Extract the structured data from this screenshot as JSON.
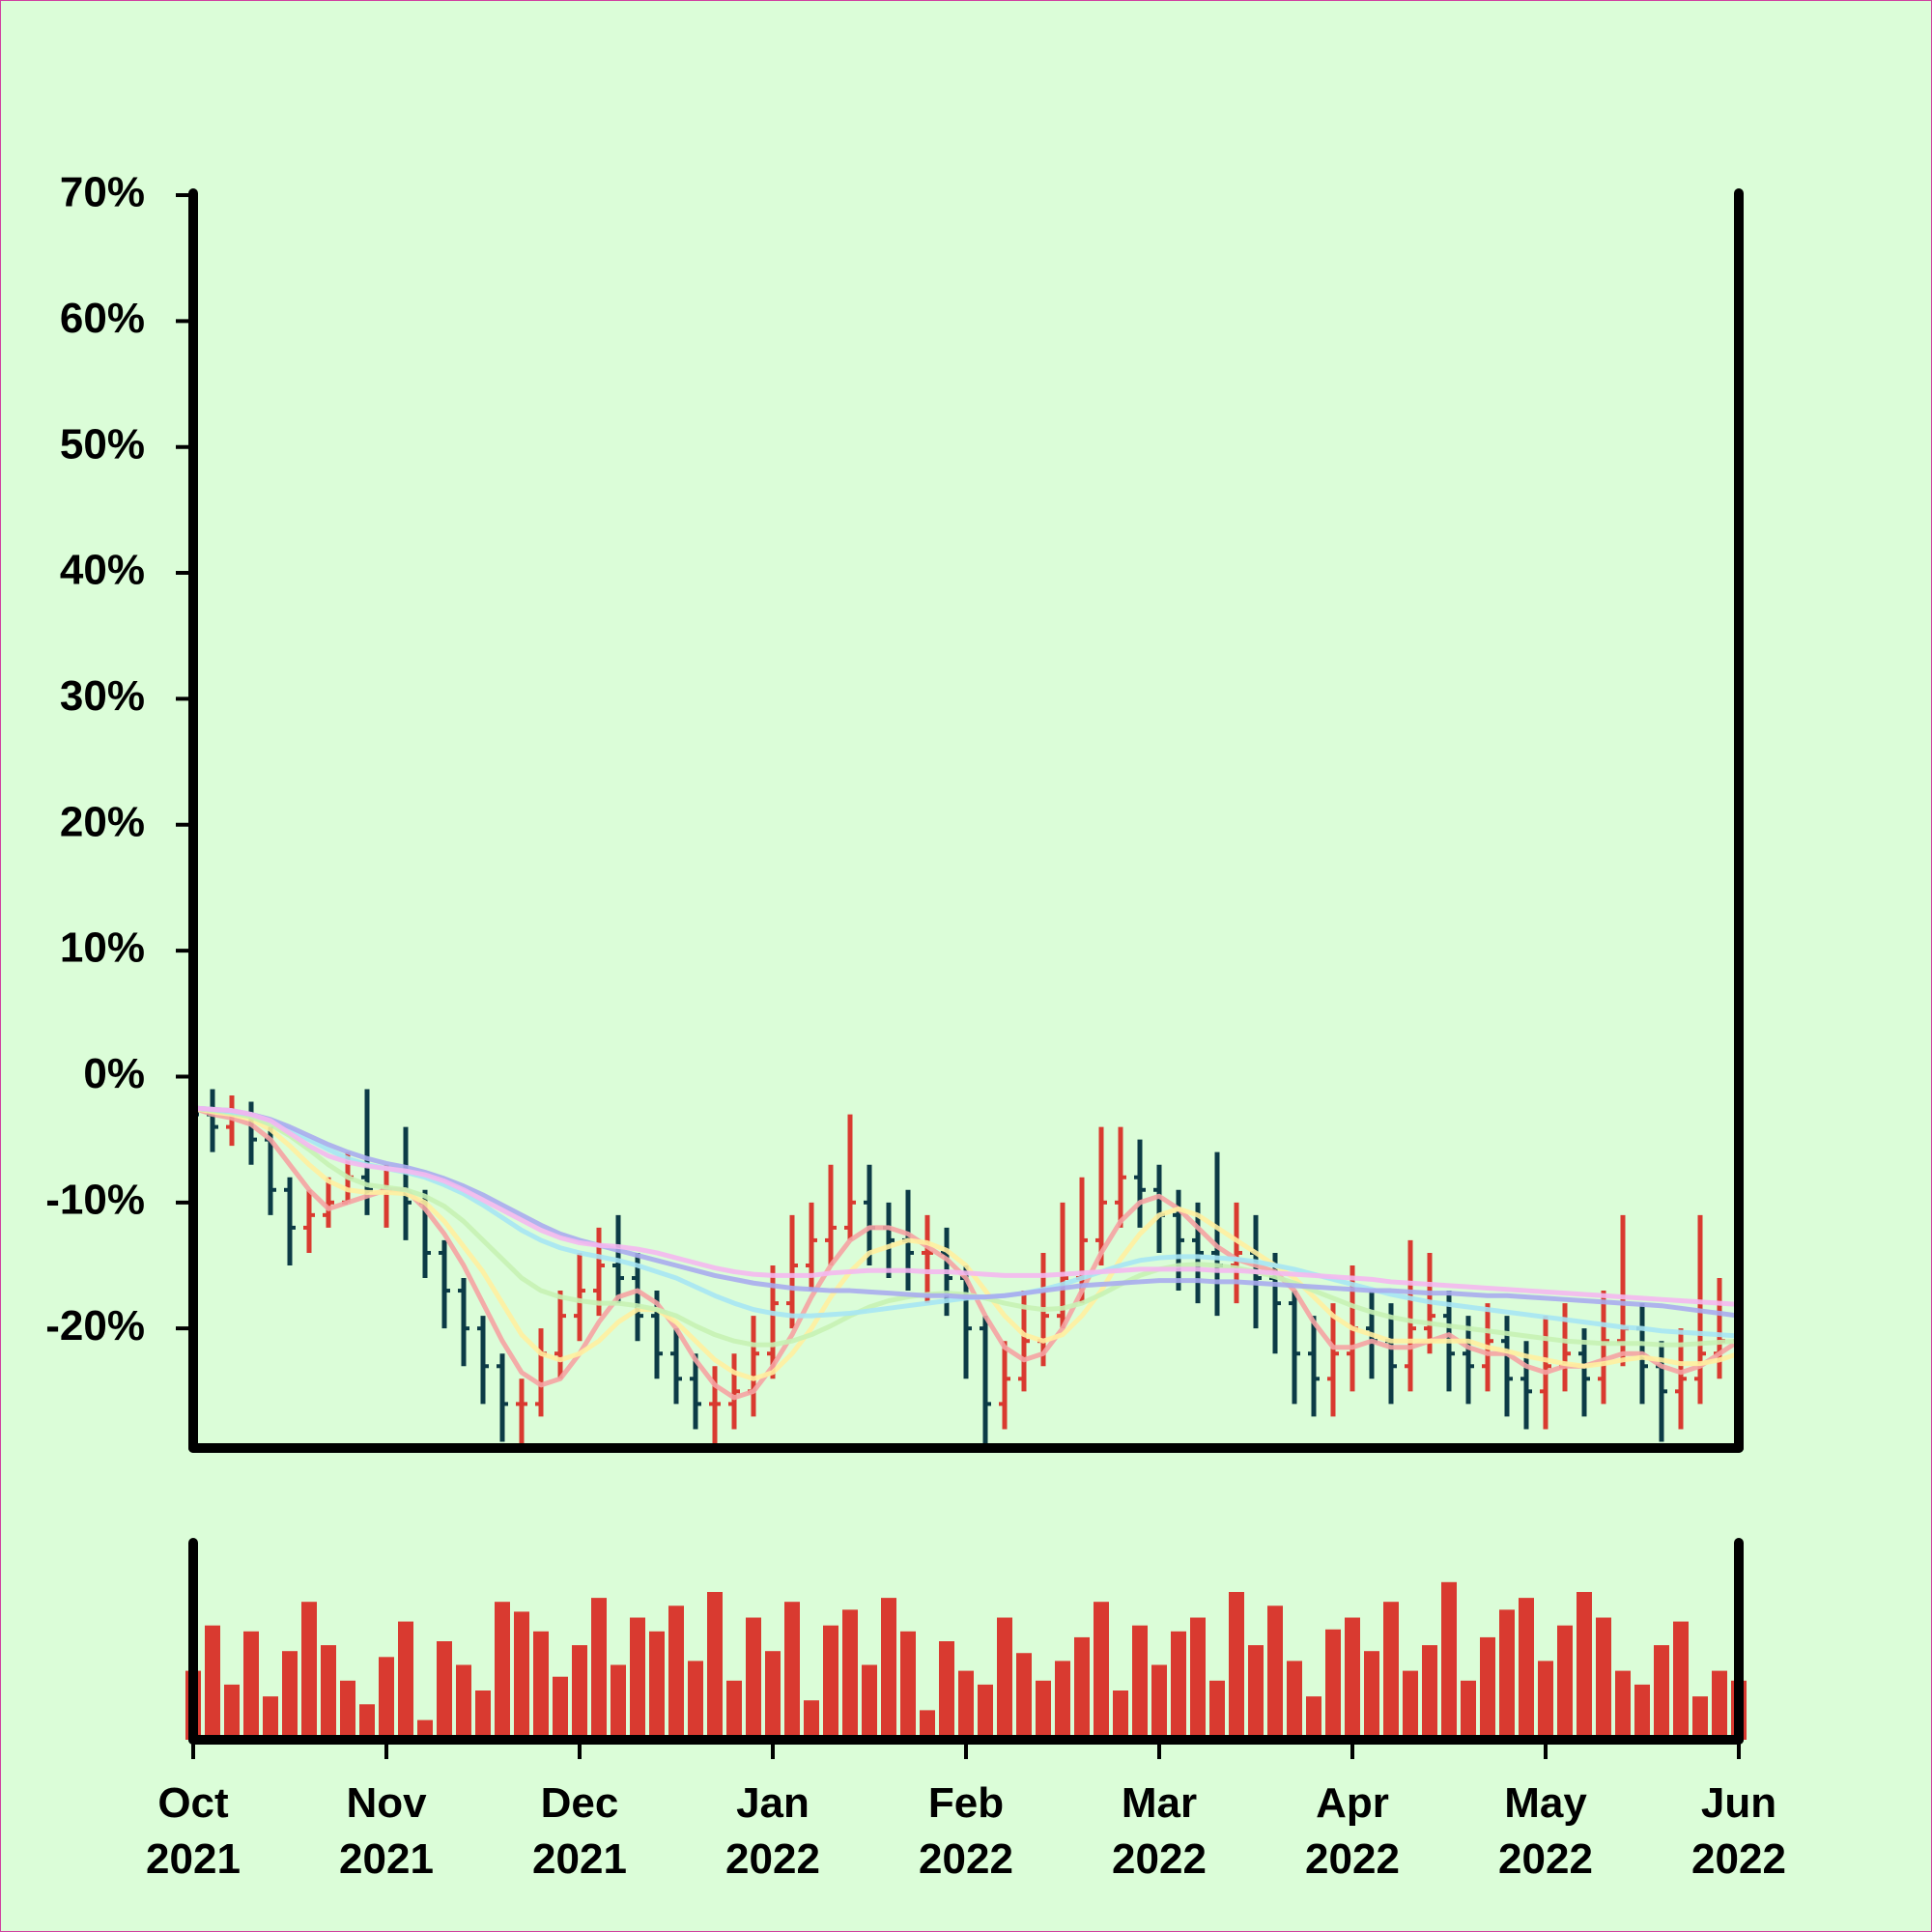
{
  "chart_data": {
    "type": "ohlc",
    "x": [
      0,
      0.1,
      0.2,
      0.3,
      0.4,
      0.5,
      0.6,
      0.7,
      0.8,
      0.9,
      1,
      1.1,
      1.2,
      1.3,
      1.4,
      1.5,
      1.6,
      1.7,
      1.8,
      1.9,
      2,
      2.1,
      2.2,
      2.3,
      2.4,
      2.5,
      2.6,
      2.7,
      2.8,
      2.9,
      3,
      3.1,
      3.2,
      3.3,
      3.4,
      3.5,
      3.6,
      3.7,
      3.8,
      3.9,
      4,
      4.1,
      4.2,
      4.3,
      4.4,
      4.5,
      4.6,
      4.7,
      4.8,
      4.9,
      5,
      5.1,
      5.2,
      5.3,
      5.4,
      5.5,
      5.6,
      5.7,
      5.8,
      5.9,
      6,
      6.1,
      6.2,
      6.3,
      6.4,
      6.5,
      6.6,
      6.7,
      6.8,
      6.9,
      7,
      7.1,
      7.2,
      7.3,
      7.4,
      7.5,
      7.6,
      7.7,
      7.8,
      7.9,
      8
    ],
    "open": [
      -2,
      -3,
      -4,
      -3,
      -5,
      -9,
      -12,
      -11,
      -10,
      -8,
      -9,
      -9,
      -10,
      -14,
      -17,
      -20,
      -23,
      -26,
      -26,
      -22,
      -19,
      -17,
      -15,
      -16,
      -19,
      -22,
      -24,
      -26,
      -26,
      -25,
      -22,
      -18,
      -15,
      -13,
      -12,
      -10,
      -12,
      -13,
      -14,
      -14,
      -16,
      -20,
      -26,
      -24,
      -21,
      -19,
      -16,
      -13,
      -10,
      -8,
      -9,
      -11,
      -13,
      -14,
      -15,
      -14,
      -16,
      -18,
      -22,
      -24,
      -22,
      -20,
      -21,
      -23,
      -20,
      -19,
      -22,
      -23,
      -21,
      -24,
      -25,
      -23,
      -22,
      -24,
      -21,
      -20,
      -23,
      -25,
      -24,
      -22,
      -21
    ],
    "high": [
      -0.5,
      -1,
      -1.5,
      -2,
      -4,
      -8,
      -9,
      -8,
      -6,
      -1,
      -7,
      -4,
      -9,
      -13,
      -16,
      -19,
      -22,
      -24,
      -20,
      -17,
      -14,
      -12,
      -11,
      -14,
      -17,
      -20,
      -22,
      -23,
      -22,
      -19,
      -15,
      -11,
      -10,
      -7,
      -3,
      -7,
      -10,
      -9,
      -11,
      -12,
      -15,
      -19,
      -21,
      -17,
      -14,
      -10,
      -8,
      -4,
      -4,
      -5,
      -7,
      -9,
      -10,
      -6,
      -10,
      -11,
      -14,
      -17,
      -19,
      -18,
      -15,
      -17,
      -18,
      -13,
      -14,
      -17,
      -19,
      -18,
      -19,
      -21,
      -19,
      -18,
      -20,
      -17,
      -11,
      -18,
      -21,
      -20,
      -11,
      -16,
      -16
    ],
    "low": [
      -5,
      -6,
      -5.5,
      -7,
      -11,
      -15,
      -14,
      -12,
      -10,
      -11,
      -12,
      -13,
      -16,
      -20,
      -23,
      -26,
      -29,
      -29.5,
      -27,
      -24,
      -21,
      -19,
      -18,
      -21,
      -24,
      -26,
      -28,
      -29.5,
      -28,
      -27,
      -24,
      -20,
      -17,
      -15,
      -13,
      -15,
      -16,
      -17,
      -18,
      -19,
      -24,
      -29.5,
      -28,
      -25,
      -23,
      -20,
      -18,
      -15,
      -12,
      -12,
      -14,
      -17,
      -18,
      -19,
      -18,
      -20,
      -22,
      -26,
      -27,
      -27,
      -25,
      -24,
      -26,
      -25,
      -22,
      -25,
      -26,
      -25,
      -27,
      -28,
      -28,
      -25,
      -27,
      -26,
      -23,
      -26,
      -29,
      -28,
      -26,
      -24,
      -22
    ],
    "close": [
      -3,
      -4,
      -3,
      -5,
      -9,
      -12,
      -11,
      -10,
      -8,
      -9,
      -9,
      -10,
      -14,
      -17,
      -20,
      -23,
      -26,
      -26,
      -22,
      -19,
      -17,
      -15,
      -16,
      -19,
      -22,
      -24,
      -26,
      -26,
      -25,
      -22,
      -18,
      -15,
      -13,
      -12,
      -10,
      -12,
      -13,
      -14,
      -14,
      -16,
      -20,
      -26,
      -24,
      -21,
      -19,
      -16,
      -13,
      -10,
      -8,
      -9,
      -11,
      -13,
      -14,
      -15,
      -14,
      -16,
      -18,
      -22,
      -24,
      -22,
      -20,
      -21,
      -23,
      -20,
      -19,
      -22,
      -23,
      -21,
      -24,
      -25,
      -23,
      -22,
      -24,
      -21,
      -20,
      -23,
      -25,
      -24,
      -22,
      -21,
      -20
    ],
    "up_color": "#d93a30",
    "down_color": "#0c3b46",
    "volume": [
      35,
      58,
      28,
      55,
      22,
      45,
      70,
      48,
      30,
      18,
      42,
      60,
      10,
      50,
      38,
      25,
      70,
      65,
      55,
      32,
      48,
      72,
      38,
      62,
      55,
      68,
      40,
      75,
      30,
      62,
      45,
      70,
      20,
      58,
      66,
      38,
      72,
      55,
      15,
      50,
      35,
      28,
      62,
      44,
      30,
      40,
      52,
      70,
      25,
      58,
      38,
      55,
      62,
      30,
      75,
      48,
      68,
      40,
      22,
      56,
      62,
      45,
      70,
      35,
      48,
      80,
      30,
      52,
      66,
      72,
      40,
      58,
      75,
      62,
      35,
      28,
      48,
      60,
      22,
      35,
      30
    ],
    "volume_color": "#d93a30",
    "vlim": [
      0,
      100
    ],
    "moving_averages": [
      {
        "color": "#f5a3a3",
        "values": [
          -2.5,
          -3,
          -3.3,
          -3.8,
          -5,
          -7,
          -9,
          -10.5,
          -10,
          -9.5,
          -9,
          -9,
          -10.5,
          -12.5,
          -15,
          -18,
          -21,
          -23.5,
          -24.5,
          -24,
          -22,
          -19.5,
          -17.5,
          -17,
          -18,
          -20,
          -22.5,
          -24.5,
          -25.5,
          -25,
          -23,
          -20.5,
          -17.5,
          -15,
          -13,
          -12,
          -12,
          -12.5,
          -13.5,
          -14.5,
          -16,
          -19,
          -21.5,
          -22.5,
          -22,
          -20,
          -17,
          -14,
          -11.5,
          -10,
          -9.5,
          -10.5,
          -12,
          -13.5,
          -14.5,
          -15,
          -15.5,
          -17,
          -19.5,
          -21.5,
          -21.5,
          -21,
          -21.5,
          -21.5,
          -21,
          -20.5,
          -21.5,
          -22,
          -22,
          -23,
          -23.5,
          -23,
          -23,
          -22.5,
          -22,
          -22,
          -23,
          -23.5,
          -23,
          -22,
          -21
        ]
      },
      {
        "color": "#fff0a0",
        "values": [
          -2.5,
          -2.8,
          -3,
          -3.4,
          -4.2,
          -5.5,
          -7,
          -8.3,
          -9,
          -9.2,
          -9.2,
          -9.3,
          -10,
          -11.5,
          -13.5,
          -15.5,
          -18,
          -20.5,
          -22,
          -22.5,
          -22,
          -21,
          -19.5,
          -18.5,
          -18.5,
          -19.5,
          -21,
          -22.5,
          -23.5,
          -24,
          -23.5,
          -22,
          -20,
          -17.5,
          -15.5,
          -14,
          -13.5,
          -13,
          -13.2,
          -13.8,
          -15,
          -17,
          -19,
          -20.5,
          -21,
          -20.5,
          -19,
          -17,
          -14.5,
          -12.5,
          -11,
          -10.5,
          -11,
          -12,
          -13,
          -14,
          -15,
          -16,
          -17.5,
          -19,
          -20,
          -20.5,
          -21,
          -21,
          -21,
          -21,
          -21,
          -21.5,
          -21.8,
          -22.2,
          -22.5,
          -22.8,
          -23,
          -22.8,
          -22.5,
          -22.3,
          -22.5,
          -22.8,
          -22.8,
          -22.5,
          -22
        ]
      },
      {
        "color": "#c6f2b4",
        "values": [
          -2.5,
          -2.7,
          -2.9,
          -3.2,
          -3.8,
          -4.7,
          -5.8,
          -7,
          -8,
          -8.6,
          -8.8,
          -9,
          -9.5,
          -10.3,
          -11.5,
          -13,
          -14.5,
          -16,
          -17,
          -17.5,
          -17.8,
          -18,
          -18,
          -18.2,
          -18.5,
          -19,
          -19.8,
          -20.5,
          -21,
          -21.3,
          -21.3,
          -21,
          -20.5,
          -19.8,
          -19,
          -18.3,
          -17.8,
          -17.5,
          -17.3,
          -17.2,
          -17.3,
          -17.6,
          -18,
          -18.3,
          -18.5,
          -18.4,
          -18,
          -17.3,
          -16.5,
          -15.8,
          -15.3,
          -15,
          -14.9,
          -15,
          -15.2,
          -15.5,
          -15.9,
          -16.4,
          -17,
          -17.6,
          -18.2,
          -18.7,
          -19.1,
          -19.4,
          -19.6,
          -19.8,
          -20,
          -20.2,
          -20.4,
          -20.6,
          -20.8,
          -21,
          -21.1,
          -21.2,
          -21.2,
          -21.2,
          -21.3,
          -21.3,
          -21.2,
          -21.1,
          -21
        ]
      },
      {
        "color": "#a6e6f4",
        "values": [
          -2.5,
          -2.6,
          -2.8,
          -3,
          -3.5,
          -4.2,
          -5,
          -5.8,
          -6.5,
          -7,
          -7.3,
          -7.6,
          -8,
          -8.6,
          -9.3,
          -10.2,
          -11.2,
          -12.2,
          -13,
          -13.6,
          -14,
          -14.3,
          -14.6,
          -15,
          -15.5,
          -16,
          -16.7,
          -17.4,
          -18,
          -18.5,
          -18.8,
          -19,
          -19,
          -18.9,
          -18.8,
          -18.6,
          -18.4,
          -18.2,
          -18,
          -17.8,
          -17.6,
          -17.5,
          -17.4,
          -17.2,
          -16.9,
          -16.5,
          -16,
          -15.5,
          -15,
          -14.6,
          -14.4,
          -14.3,
          -14.3,
          -14.4,
          -14.5,
          -14.7,
          -15,
          -15.3,
          -15.7,
          -16.1,
          -16.5,
          -16.9,
          -17.3,
          -17.6,
          -17.9,
          -18.1,
          -18.3,
          -18.5,
          -18.7,
          -18.9,
          -19.1,
          -19.3,
          -19.5,
          -19.7,
          -19.9,
          -20,
          -20.2,
          -20.3,
          -20.4,
          -20.5,
          -20.6
        ]
      },
      {
        "color": "#a8acee",
        "values": [
          -2.5,
          -2.6,
          -2.7,
          -3,
          -3.4,
          -4,
          -4.7,
          -5.4,
          -6,
          -6.5,
          -6.9,
          -7.2,
          -7.6,
          -8.1,
          -8.7,
          -9.4,
          -10.2,
          -11,
          -11.8,
          -12.5,
          -13,
          -13.4,
          -13.8,
          -14.2,
          -14.6,
          -15,
          -15.4,
          -15.8,
          -16.1,
          -16.4,
          -16.6,
          -16.8,
          -16.9,
          -17,
          -17,
          -17.1,
          -17.2,
          -17.3,
          -17.4,
          -17.4,
          -17.5,
          -17.5,
          -17.4,
          -17.2,
          -17,
          -16.8,
          -16.6,
          -16.5,
          -16.4,
          -16.3,
          -16.2,
          -16.2,
          -16.2,
          -16.3,
          -16.3,
          -16.4,
          -16.5,
          -16.6,
          -16.7,
          -16.8,
          -16.9,
          -17,
          -17,
          -17.1,
          -17.2,
          -17.2,
          -17.3,
          -17.4,
          -17.4,
          -17.5,
          -17.6,
          -17.7,
          -17.8,
          -17.9,
          -18,
          -18.1,
          -18.2,
          -18.4,
          -18.6,
          -18.8,
          -19
        ]
      },
      {
        "color": "#f4b8f0",
        "values": [
          -2.5,
          -2.6,
          -2.7,
          -3,
          -3.5,
          -4.5,
          -5.5,
          -6.3,
          -6.8,
          -7.1,
          -7.3,
          -7.5,
          -7.8,
          -8.3,
          -9,
          -9.8,
          -10.6,
          -11.4,
          -12.2,
          -12.8,
          -13.2,
          -13.4,
          -13.5,
          -13.7,
          -14,
          -14.4,
          -14.8,
          -15.2,
          -15.5,
          -15.7,
          -15.8,
          -15.8,
          -15.8,
          -15.6,
          -15.5,
          -15.4,
          -15.4,
          -15.4,
          -15.5,
          -15.5,
          -15.6,
          -15.7,
          -15.8,
          -15.8,
          -15.8,
          -15.7,
          -15.6,
          -15.5,
          -15.4,
          -15.3,
          -15.3,
          -15.3,
          -15.3,
          -15.4,
          -15.4,
          -15.5,
          -15.6,
          -15.7,
          -15.8,
          -15.9,
          -16,
          -16.1,
          -16.3,
          -16.4,
          -16.5,
          -16.6,
          -16.7,
          -16.8,
          -16.9,
          -17,
          -17.1,
          -17.2,
          -17.3,
          -17.4,
          -17.5,
          -17.6,
          -17.7,
          -17.8,
          -17.9,
          -18,
          -18.1
        ]
      }
    ],
    "xlim": [
      0,
      8
    ],
    "xticks": [
      {
        "value": 0,
        "label": "Oct\n2021"
      },
      {
        "value": 1,
        "label": "Nov\n2021"
      },
      {
        "value": 2,
        "label": "Dec\n2021"
      },
      {
        "value": 3,
        "label": "Jan\n2022"
      },
      {
        "value": 4,
        "label": "Feb\n2022"
      },
      {
        "value": 5,
        "label": "Mar\n2022"
      },
      {
        "value": 6,
        "label": "Apr\n2022"
      },
      {
        "value": 7,
        "label": "May\n2022"
      },
      {
        "value": 8,
        "label": "Jun\n2022"
      }
    ],
    "ylim": [
      -29.5,
      70
    ],
    "yticks": [
      {
        "value": -20,
        "label": "-20%"
      },
      {
        "value": -10,
        "label": "-10%"
      },
      {
        "value": 0,
        "label": "0%"
      },
      {
        "value": 10,
        "label": "10%"
      },
      {
        "value": 20,
        "label": "20%"
      },
      {
        "value": 30,
        "label": "30%"
      },
      {
        "value": 40,
        "label": "40%"
      },
      {
        "value": 50,
        "label": "50%"
      },
      {
        "value": 60,
        "label": "60%"
      },
      {
        "value": 70,
        "label": "70%"
      }
    ]
  }
}
